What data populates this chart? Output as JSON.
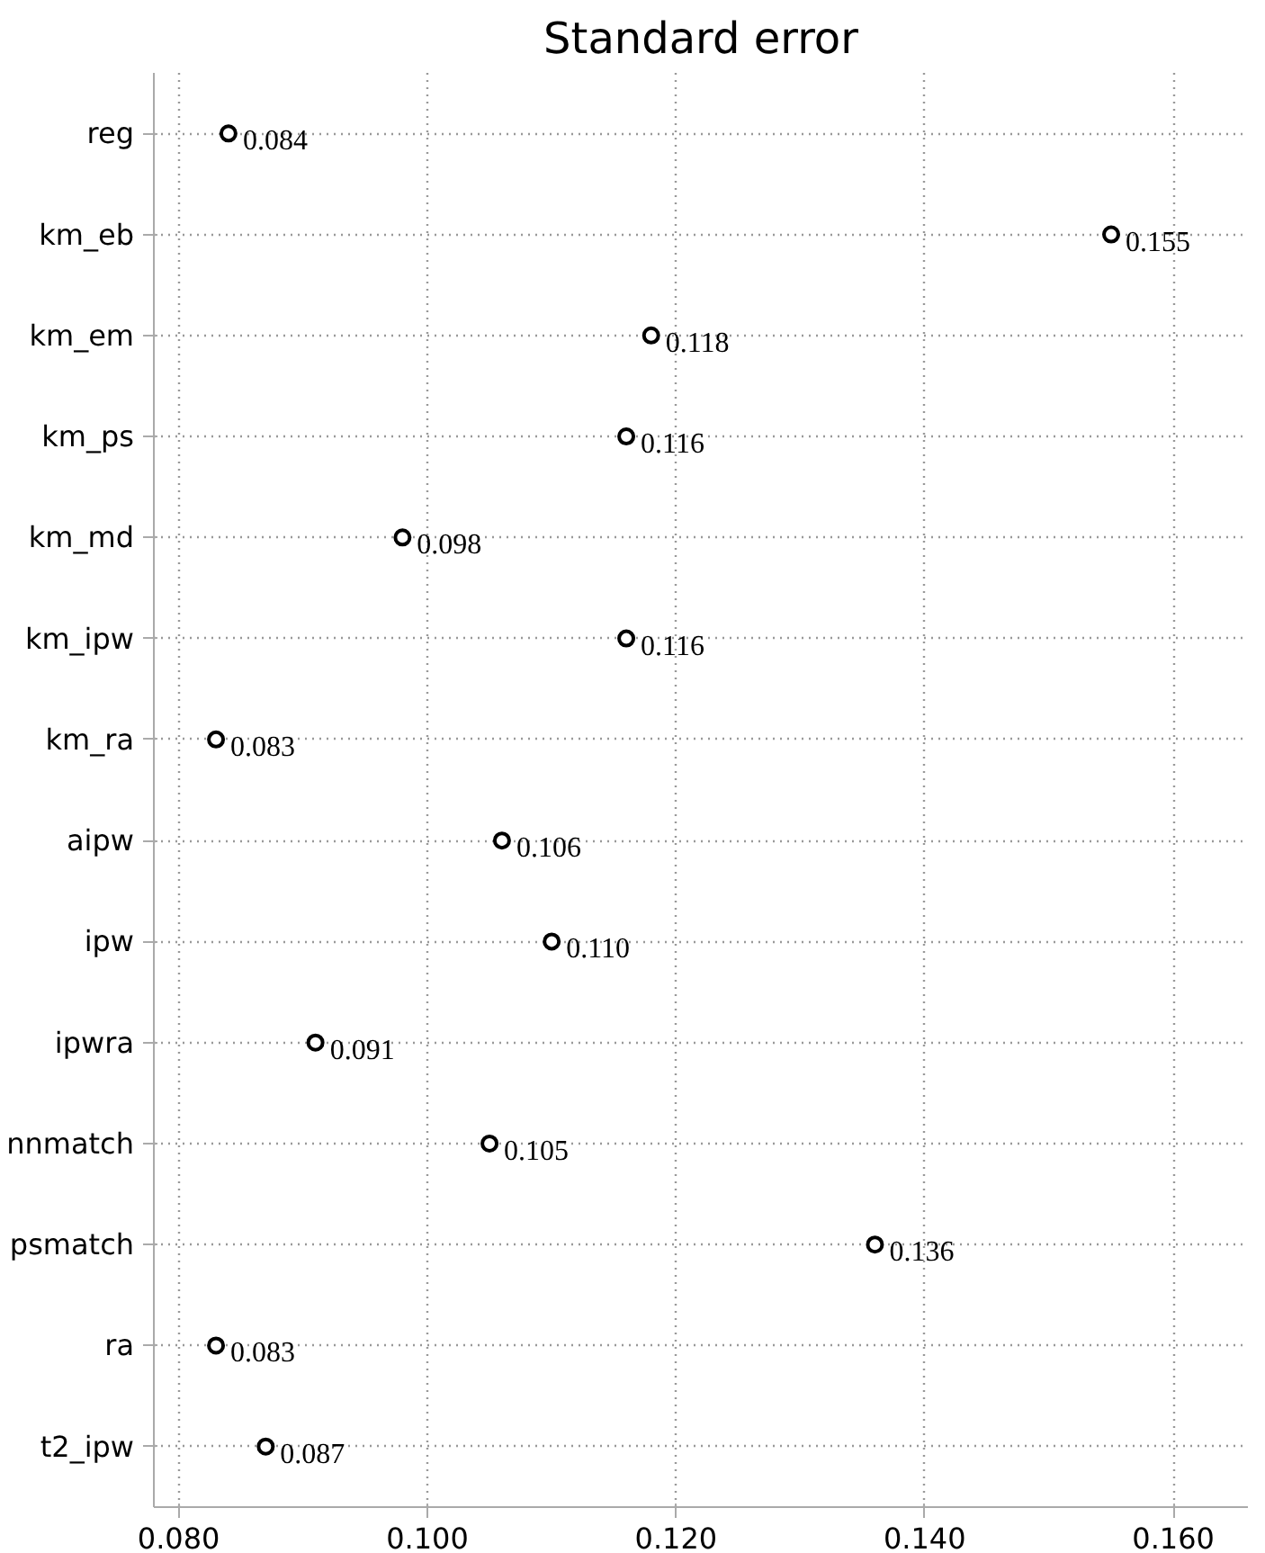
{
  "chart_data": {
    "type": "scatter",
    "orientation": "horizontal",
    "title": "Standard error",
    "categories": [
      "reg",
      "km_eb",
      "km_em",
      "km_ps",
      "km_md",
      "km_ipw",
      "km_ra",
      "aipw",
      "ipw",
      "ipwra",
      "nnmatch",
      "psmatch",
      "ra",
      "t2_ipw"
    ],
    "values": [
      0.084,
      0.155,
      0.118,
      0.116,
      0.098,
      0.116,
      0.083,
      0.106,
      0.11,
      0.091,
      0.105,
      0.136,
      0.083,
      0.087
    ],
    "value_labels": [
      "0.084",
      "0.155",
      "0.118",
      "0.116",
      "0.098",
      "0.116",
      "0.083",
      "0.106",
      "0.110",
      "0.091",
      "0.105",
      "0.136",
      "0.083",
      "0.087"
    ],
    "color": "#000000",
    "marker": "circle",
    "grid": true,
    "xlim": [
      0.078,
      0.166
    ],
    "xticks": [
      {
        "value": 0.08,
        "label": "0.080"
      },
      {
        "value": 0.1,
        "label": "0.100"
      },
      {
        "value": 0.12,
        "label": "0.120"
      },
      {
        "value": 0.14,
        "label": "0.140"
      },
      {
        "value": 0.16,
        "label": "0.160"
      }
    ]
  }
}
